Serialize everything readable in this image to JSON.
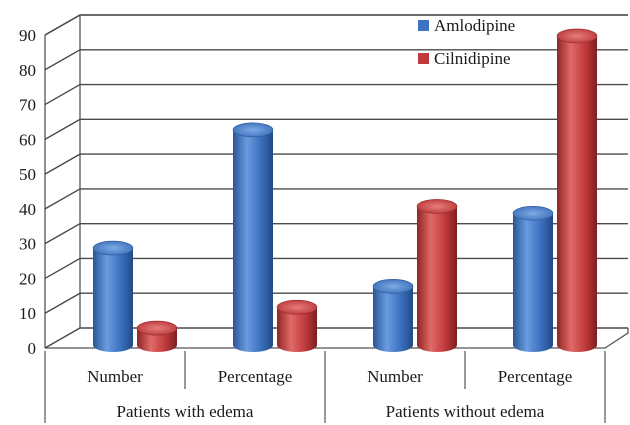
{
  "chart_data": {
    "type": "bar",
    "style": "3d-cylinder",
    "groups": [
      {
        "label": "Patients with edema",
        "categories": [
          "Number",
          "Percentage"
        ]
      },
      {
        "label": "Patients without edema",
        "categories": [
          "Number",
          "Percentage"
        ]
      }
    ],
    "categories": [
      "Number",
      "Percentage",
      "Number",
      "Percentage"
    ],
    "series": [
      {
        "name": "Amlodipine",
        "color": "#3c73c2",
        "values": [
          27,
          61,
          16,
          37
        ]
      },
      {
        "name": "Cilnidipine",
        "color": "#c0393b",
        "values": [
          4,
          10,
          39,
          88
        ]
      }
    ],
    "yticks": [
      0,
      10,
      20,
      30,
      40,
      50,
      60,
      70,
      80,
      90
    ],
    "ylim": [
      0,
      90
    ],
    "title": "",
    "xlabel": "",
    "ylabel": "",
    "grid": true,
    "legend_position": "top-right"
  }
}
